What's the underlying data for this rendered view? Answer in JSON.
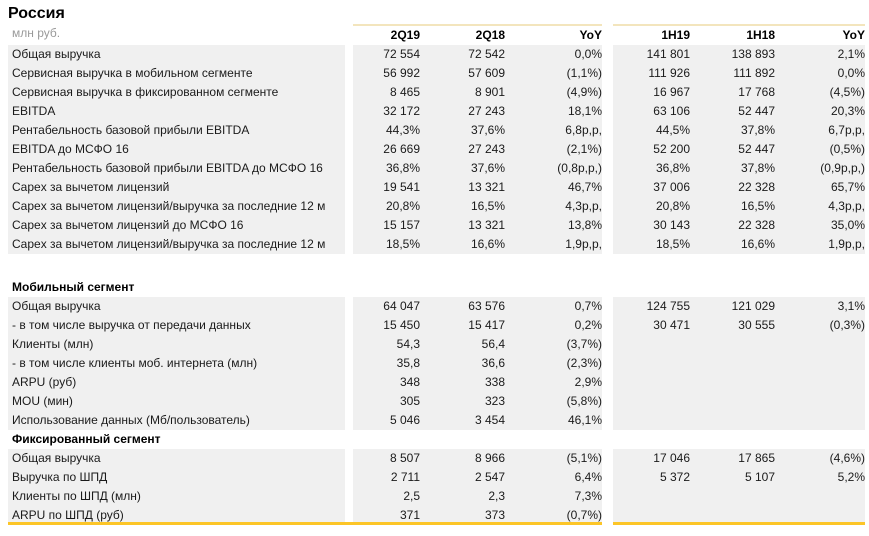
{
  "title": "Россия",
  "table": {
    "unit_label": "млн руб.",
    "columns": [
      "2Q19",
      "2Q18",
      "YoY",
      "1H19",
      "1H18",
      "YoY"
    ],
    "rows": [
      {
        "type": "data",
        "label": "Общая выручка",
        "values": [
          "72 554",
          "72 542",
          "0,0%",
          "141 801",
          "138 893",
          "2,1%"
        ]
      },
      {
        "type": "data",
        "label": "Сервисная выручка в мобильном сегменте",
        "values": [
          "56 992",
          "57 609",
          "(1,1%)",
          "111 926",
          "111 892",
          "0,0%"
        ]
      },
      {
        "type": "data",
        "label": "Сервисная выручка в фиксированном сегменте",
        "values": [
          "8 465",
          "8 901",
          "(4,9%)",
          "16 967",
          "17 768",
          "(4,5%)"
        ]
      },
      {
        "type": "data",
        "label": "EBITDA",
        "values": [
          "32 172",
          "27 243",
          "18,1%",
          "63 106",
          "52 447",
          "20,3%"
        ]
      },
      {
        "type": "data",
        "label": "Рентабельность базовой прибыли EBITDA",
        "values": [
          "44,3%",
          "37,6%",
          "6,8p,p,",
          "44,5%",
          "37,8%",
          "6,7p,p,"
        ]
      },
      {
        "type": "data",
        "label": "EBITDA до МСФО 16",
        "values": [
          "26 669",
          "27 243",
          "(2,1%)",
          "52 200",
          "52 447",
          "(0,5%)"
        ]
      },
      {
        "type": "data",
        "label": "Рентабельность базовой прибыли EBITDA до МСФО 16",
        "values": [
          "36,8%",
          "37,6%",
          "(0,8p,p,)",
          "36,8%",
          "37,8%",
          "(0,9p,p,)"
        ]
      },
      {
        "type": "data",
        "label": "Capex за вычетом лицензий",
        "values": [
          "19 541",
          "13 321",
          "46,7%",
          "37 006",
          "22 328",
          "65,7%"
        ]
      },
      {
        "type": "data",
        "label": "Capex за вычетом лицензий/выручка за последние 12 м",
        "values": [
          "20,8%",
          "16,5%",
          "4,3p,p,",
          "20,8%",
          "16,5%",
          "4,3p,p,"
        ]
      },
      {
        "type": "data",
        "label": "Capex за вычетом лицензий до МСФО 16",
        "values": [
          "15 157",
          "13 321",
          "13,8%",
          "30 143",
          "22 328",
          "35,0%"
        ]
      },
      {
        "type": "data",
        "label": "Capex за вычетом лицензий/выручка за последние 12 м",
        "values": [
          "18,5%",
          "16,6%",
          "1,9p,p,",
          "18,5%",
          "16,6%",
          "1,9p,p,"
        ]
      },
      {
        "type": "spacer"
      },
      {
        "type": "section",
        "label": "Мобильный сегмент",
        "values": [
          "",
          "",
          "",
          "",
          "",
          ""
        ]
      },
      {
        "type": "data",
        "label": "Общая выручка",
        "values": [
          "64 047",
          "63 576",
          "0,7%",
          "124 755",
          "121 029",
          "3,1%"
        ]
      },
      {
        "type": "data",
        "label": "- в том числе выручка от передачи данных",
        "values": [
          "15 450",
          "15 417",
          "0,2%",
          "30 471",
          "30 555",
          "(0,3%)"
        ]
      },
      {
        "type": "data",
        "label": "Клиенты (млн)",
        "values": [
          "54,3",
          "56,4",
          "(3,7%)",
          "",
          "",
          ""
        ]
      },
      {
        "type": "data",
        "label": "- в том числе клиенты моб. интернета (млн)",
        "values": [
          "35,8",
          "36,6",
          "(2,3%)",
          "",
          "",
          ""
        ]
      },
      {
        "type": "data",
        "label": "ARPU (руб)",
        "values": [
          "348",
          "338",
          "2,9%",
          "",
          "",
          ""
        ]
      },
      {
        "type": "data",
        "label": "MOU (мин)",
        "values": [
          "305",
          "323",
          "(5,8%)",
          "",
          "",
          ""
        ]
      },
      {
        "type": "data",
        "label": "Использование данных (Мб/пользователь)",
        "values": [
          "5 046",
          "3 454",
          "46,1%",
          "",
          "",
          ""
        ]
      },
      {
        "type": "section",
        "label": "Фиксированный сегмент",
        "values": [
          "",
          "",
          "",
          "",
          "",
          ""
        ]
      },
      {
        "type": "data",
        "label": "Общая выручка",
        "values": [
          "8 507",
          "8 966",
          "(5,1%)",
          "17 046",
          "17 865",
          "(4,6%)"
        ]
      },
      {
        "type": "data",
        "label": "Выручка по ШПД",
        "values": [
          "2 711",
          "2 547",
          "6,4%",
          "5 372",
          "5 107",
          "5,2%"
        ]
      },
      {
        "type": "data",
        "label": "Клиенты по ШПД (млн)",
        "values": [
          "2,5",
          "2,3",
          "7,3%",
          "",
          "",
          ""
        ]
      },
      {
        "type": "data",
        "label": "ARPU по ШПД (руб)",
        "values": [
          "371",
          "373",
          "(0,7%)",
          "",
          "",
          ""
        ]
      }
    ]
  },
  "colors": {
    "row_background": "#f0f0f0",
    "header_top_line": "#f3e5bd",
    "bottom_line": "#fcc527",
    "muted_text": "#9a9a9a"
  }
}
